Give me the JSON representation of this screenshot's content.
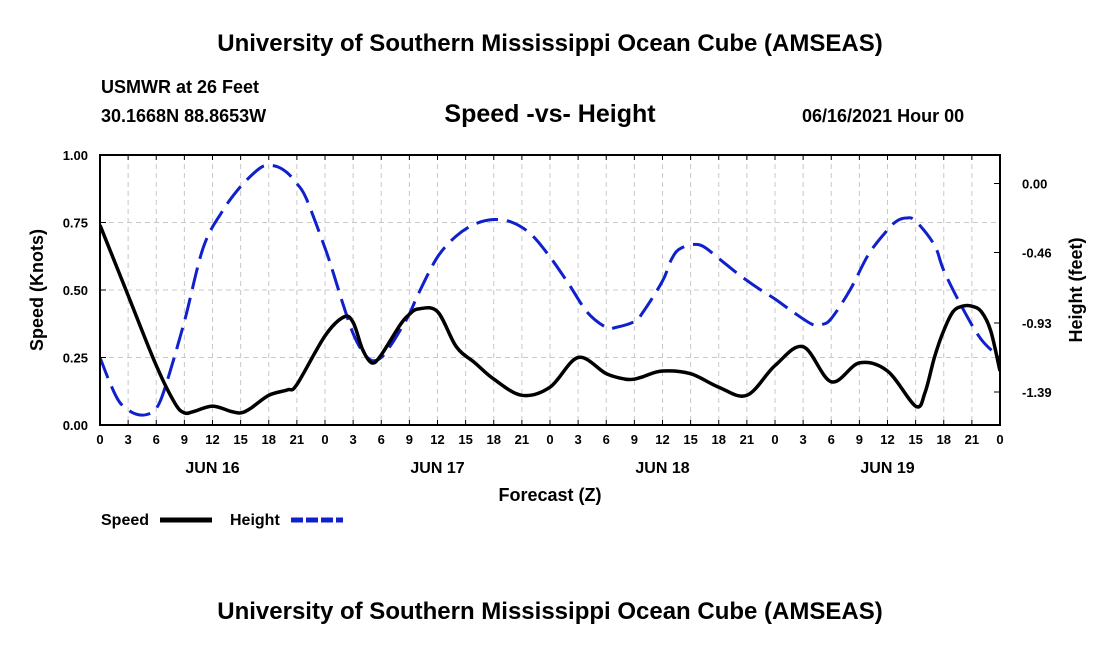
{
  "header": {
    "title": "University of Southern Mississippi Ocean Cube (AMSEAS)",
    "station": "USMWR at 26 Feet",
    "coordinates": "30.1668N  88.8653W",
    "datetime": "06/16/2021 Hour 00"
  },
  "footer": {
    "title": "University of Southern Mississippi Ocean Cube (AMSEAS)"
  },
  "chart_data": {
    "type": "line",
    "title": "Speed -vs- Height",
    "xlabel": "Forecast (Z)",
    "ylabel_left": "Speed (Knots)",
    "ylabel_right": "Height (feet)",
    "xlim": [
      0,
      96
    ],
    "ylim_left": [
      0,
      1.0
    ],
    "ylim_right": [
      -1.61,
      0.19
    ],
    "x_ticks": [
      0,
      3,
      6,
      9,
      12,
      15,
      18,
      21,
      24,
      27,
      30,
      33,
      36,
      39,
      42,
      45,
      48,
      51,
      54,
      57,
      60,
      63,
      66,
      69,
      72,
      75,
      78,
      81,
      84,
      87,
      90,
      93,
      96
    ],
    "x_tick_labels": [
      "0",
      "3",
      "6",
      "9",
      "12",
      "15",
      "18",
      "21",
      "0",
      "3",
      "6",
      "9",
      "12",
      "15",
      "18",
      "21",
      "0",
      "3",
      "6",
      "9",
      "12",
      "15",
      "18",
      "21",
      "0",
      "3",
      "6",
      "9",
      "12",
      "15",
      "18",
      "21",
      "0"
    ],
    "day_labels": [
      {
        "x": 12,
        "label": "JUN 16"
      },
      {
        "x": 36,
        "label": "JUN 17"
      },
      {
        "x": 60,
        "label": "JUN 18"
      },
      {
        "x": 84,
        "label": "JUN 19"
      }
    ],
    "y_ticks_left": [
      0.0,
      0.25,
      0.5,
      0.75,
      1.0
    ],
    "y_tick_labels_left": [
      "0.00",
      "0.25",
      "0.50",
      "0.75",
      "1.00"
    ],
    "y_ticks_right": [
      0.0,
      -0.46,
      -0.93,
      -1.39
    ],
    "y_tick_labels_right": [
      "0.00",
      "-0.46",
      "-0.93",
      "-1.39"
    ],
    "grid": true,
    "legend_position": "bottom-left",
    "series": [
      {
        "name": "Speed",
        "axis": "left",
        "color": "#000000",
        "style": "solid",
        "x": [
          0,
          3,
          6,
          8,
          9,
          10,
          12,
          14,
          15,
          16,
          18,
          20,
          21,
          24,
          26,
          27,
          28,
          29,
          30,
          32,
          33,
          34,
          36,
          38,
          40,
          42,
          45,
          48,
          51,
          54,
          56,
          57,
          58,
          60,
          63,
          66,
          69,
          72,
          75,
          78,
          81,
          84,
          87,
          88,
          89,
          90,
          91,
          92,
          93,
          94,
          95,
          96
        ],
        "y": [
          0.74,
          0.48,
          0.22,
          0.08,
          0.045,
          0.05,
          0.07,
          0.05,
          0.045,
          0.06,
          0.11,
          0.13,
          0.15,
          0.33,
          0.4,
          0.38,
          0.28,
          0.23,
          0.26,
          0.37,
          0.41,
          0.43,
          0.42,
          0.29,
          0.23,
          0.17,
          0.11,
          0.14,
          0.25,
          0.19,
          0.17,
          0.17,
          0.18,
          0.2,
          0.19,
          0.14,
          0.11,
          0.22,
          0.29,
          0.16,
          0.23,
          0.2,
          0.07,
          0.12,
          0.25,
          0.35,
          0.42,
          0.44,
          0.44,
          0.42,
          0.35,
          0.2
        ]
      },
      {
        "name": "Height",
        "axis": "right",
        "color": "#1020cc",
        "style": "dashed",
        "x": [
          0,
          1,
          2,
          3,
          4,
          5,
          6,
          7,
          9,
          11,
          13,
          15,
          17,
          18,
          19,
          20,
          21,
          22,
          24,
          25,
          26,
          27,
          28,
          29,
          30,
          31,
          32,
          33,
          34,
          36,
          38,
          40,
          42,
          44,
          46,
          48,
          50,
          52,
          54,
          55,
          57,
          58,
          60,
          61,
          62,
          64,
          66,
          68,
          70,
          72,
          74,
          76,
          77,
          78,
          80,
          82,
          84,
          85,
          86,
          87,
          89,
          90,
          92,
          94,
          96
        ],
        "y": [
          -1.16,
          -1.32,
          -1.45,
          -1.51,
          -1.54,
          -1.54,
          -1.5,
          -1.35,
          -0.92,
          -0.43,
          -0.19,
          -0.02,
          0.1,
          0.12,
          0.11,
          0.07,
          0.0,
          -0.1,
          -0.43,
          -0.62,
          -0.82,
          -1.0,
          -1.12,
          -1.18,
          -1.16,
          -1.08,
          -0.98,
          -0.87,
          -0.73,
          -0.49,
          -0.35,
          -0.27,
          -0.24,
          -0.26,
          -0.34,
          -0.49,
          -0.67,
          -0.86,
          -0.96,
          -0.96,
          -0.92,
          -0.85,
          -0.65,
          -0.5,
          -0.43,
          -0.41,
          -0.5,
          -0.6,
          -0.69,
          -0.77,
          -0.86,
          -0.94,
          -0.94,
          -0.9,
          -0.71,
          -0.47,
          -0.31,
          -0.25,
          -0.23,
          -0.25,
          -0.41,
          -0.58,
          -0.83,
          -1.04,
          -1.16
        ]
      }
    ]
  }
}
